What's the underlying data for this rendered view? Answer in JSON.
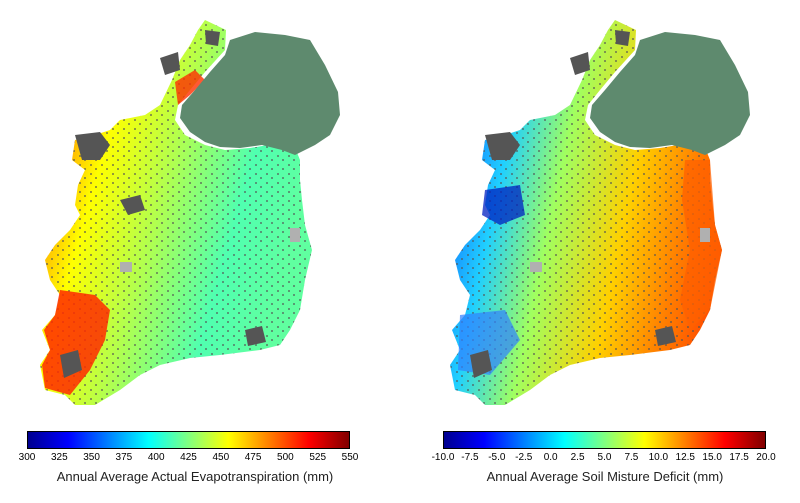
{
  "colors": {
    "northern_ireland": "#5e8a6e",
    "urban": "#555555",
    "water": "#b0b0b0",
    "scale": [
      "#00008f",
      "#0000ff",
      "#0080ff",
      "#00ffff",
      "#80ff80",
      "#ffff00",
      "#ff8000",
      "#ff0000",
      "#800000"
    ]
  },
  "maps": [
    {
      "id": "aet",
      "legend_title": "Annual Average Actual Evapotranspiration (mm)",
      "ticks": [
        "300",
        "325",
        "350",
        "375",
        "400",
        "425",
        "450",
        "475",
        "500",
        "525",
        "550"
      ]
    },
    {
      "id": "smd",
      "legend_title": "Annual Average Soil Misture Deficit (mm)",
      "ticks": [
        "-10.0",
        "-7.5",
        "-5.0",
        "-2.5",
        "0.0",
        "2.5",
        "5.0",
        "7.5",
        "10.0",
        "12.5",
        "15.0",
        "17.5",
        "20.0"
      ]
    }
  ]
}
